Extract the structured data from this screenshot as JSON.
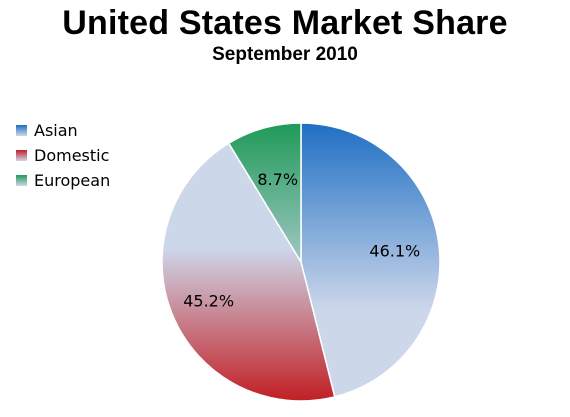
{
  "chart_data": {
    "type": "pie",
    "title": "United States Market Share",
    "subtitle": "September 2010",
    "legend_position": "left",
    "slices": [
      {
        "name": "Asian",
        "value": 46.1,
        "label": "46.1%",
        "color": "#1f6fc4"
      },
      {
        "name": "Domestic",
        "value": 45.2,
        "label": "45.2%",
        "color": "#c11f24"
      },
      {
        "name": "European",
        "value": 8.7,
        "label": "8.7%",
        "color": "#1f9a57"
      }
    ],
    "fade_color": "#cdd7ea"
  }
}
